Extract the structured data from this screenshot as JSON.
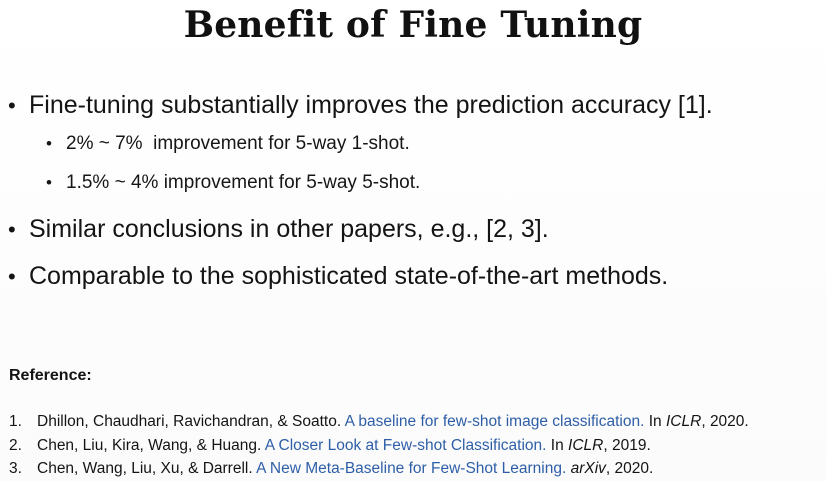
{
  "slide": {
    "title": "Benefit of Fine Tuning",
    "bullets": [
      {
        "text": "Fine-tuning substantially improves the prediction accuracy [1].",
        "sub": [
          "2% ~ 7%  improvement for 5-way 1-shot.",
          "1.5% ~ 4% improvement for 5-way 5-shot."
        ]
      },
      {
        "text": "Similar conclusions in other papers, e.g., [2, 3]."
      },
      {
        "text": "Comparable to the sophisticated state-of-the-art methods."
      }
    ],
    "bullet_symbol": "•",
    "references": {
      "heading": "Reference:",
      "items": [
        {
          "num": "1.",
          "authors": "Dhillon, Chaudhari, Ravichandran, & Soatto.",
          "title": "A baseline for few-shot image classification.",
          "in": "In",
          "venue": "ICLR",
          "year": ", 2020."
        },
        {
          "num": "2.",
          "authors": "Chen, Liu, Kira, Wang, & Huang.",
          "title": "A Closer Look at Few-shot Classification.",
          "in": "In",
          "venue": "ICLR",
          "year": ", 2019."
        },
        {
          "num": "3.",
          "authors": "Chen, Wang, Liu, Xu, & Darrell.",
          "title": "A New Meta-Baseline for Few-Shot Learning.",
          "in": "",
          "venue": "arXiv",
          "year": ", 2020."
        }
      ]
    },
    "colors": {
      "text": "#141414",
      "link": "#2e5ea8",
      "background": "#ffffff"
    }
  }
}
